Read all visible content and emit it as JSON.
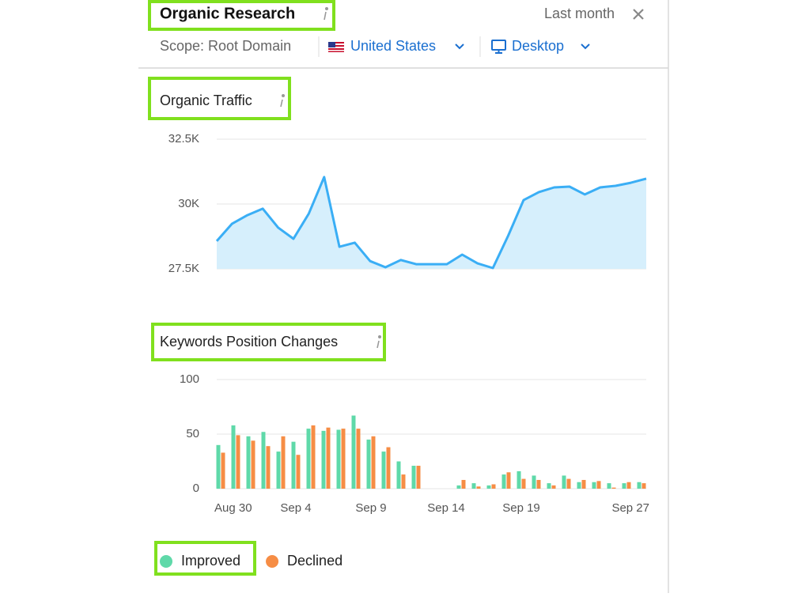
{
  "header": {
    "title": "Organic Research",
    "period": "Last month"
  },
  "filters": {
    "scope": "Scope: Root Domain",
    "country": "United States",
    "device": "Desktop"
  },
  "chart_data": [
    {
      "type": "line",
      "title": "Organic Traffic",
      "values": [
        28570,
        29240,
        29570,
        29820,
        29090,
        28660,
        29630,
        31040,
        28350,
        28510,
        27800,
        27560,
        27840,
        27680,
        27680,
        27680,
        28050,
        27710,
        27530,
        28780,
        30150,
        30460,
        30640,
        30670,
        30370,
        30640,
        30700,
        30820,
        30980
      ],
      "color": "#3aaef5",
      "fill": "#d6effc",
      "ylim": [
        27500,
        32500
      ],
      "yticks": [
        {
          "value": 27500,
          "label": "27.5K"
        },
        {
          "value": 30000,
          "label": "30K"
        },
        {
          "value": 32500,
          "label": "32.5K"
        }
      ],
      "grid": true
    },
    {
      "type": "bar",
      "title": "Keywords Position Changes",
      "categories": [
        "Aug 30",
        null,
        null,
        null,
        null,
        "Sep 4",
        null,
        null,
        null,
        null,
        "Sep 9",
        null,
        null,
        null,
        null,
        "Sep 14",
        null,
        null,
        null,
        null,
        "Sep 19",
        null,
        null,
        null,
        null,
        null,
        null,
        null,
        "Sep 27"
      ],
      "series": [
        {
          "name": "Improved",
          "color": "#5fd9a9",
          "values": [
            40,
            58,
            48,
            52,
            34,
            43,
            55,
            53,
            54,
            67,
            45,
            34,
            25,
            21,
            0,
            0,
            3,
            5,
            3,
            13,
            16,
            12,
            5,
            12,
            6,
            6,
            5,
            5,
            6
          ]
        },
        {
          "name": "Declined",
          "color": "#f68d45",
          "values": [
            33,
            49,
            44,
            39,
            48,
            31,
            58,
            56,
            55,
            55,
            48,
            38,
            13,
            21,
            0,
            0,
            8,
            2,
            4,
            15,
            9,
            8,
            3,
            9,
            8,
            7,
            1,
            6,
            5
          ]
        }
      ],
      "ylim": [
        0,
        100
      ],
      "yticks": [
        0,
        50,
        100
      ],
      "grid": true,
      "legend": "bottom"
    }
  ]
}
